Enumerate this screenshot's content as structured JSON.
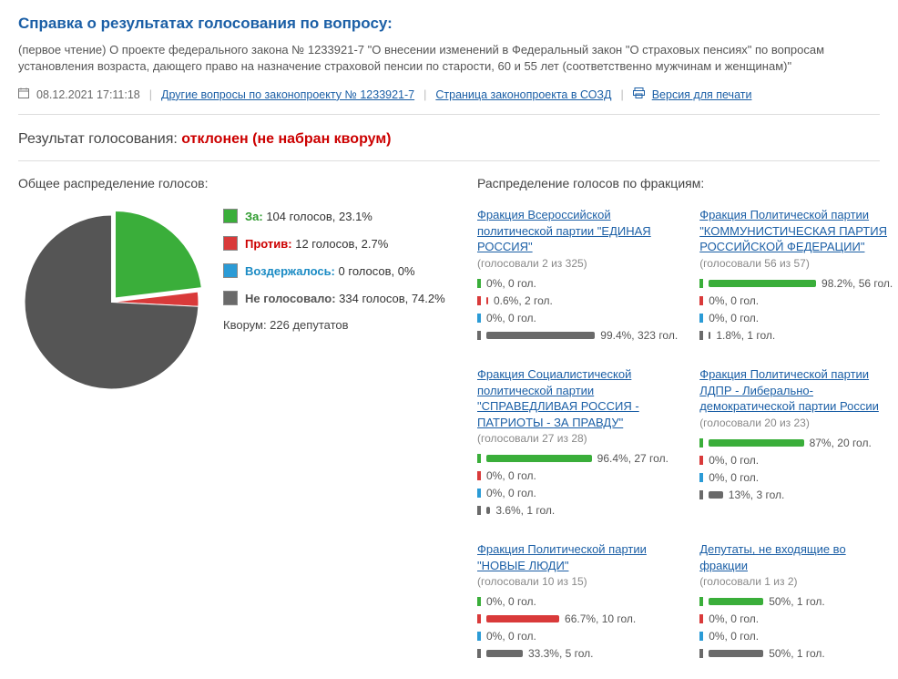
{
  "header": {
    "title": "Справка о результатах голосования по вопросу:",
    "subtitle": "(первое чтение) О проекте федерального закона № 1233921-7 \"О внесении изменений в Федеральный закон \"О страховых пенсиях\" по вопросам установления возраста, дающего право на назначение страховой пенсии по старости, 60 и 55 лет (соответственно мужчинам и женщинам)\""
  },
  "meta": {
    "datetime": "08.12.2021 17:11:18",
    "link_other": "Другие вопросы по законопроекту № 1233921-7",
    "link_sozd": "Страница законопроекта в СОЗД",
    "link_print": "Версия для печати"
  },
  "result": {
    "label": "Результат голосования:",
    "value": "отклонен (не набран кворум)"
  },
  "overall": {
    "heading": "Общее распределение голосов:",
    "pie": {
      "size": 200,
      "slices": [
        {
          "key": "for",
          "pct": 23.1,
          "color": "#3aae3a"
        },
        {
          "key": "against",
          "pct": 2.7,
          "color": "#d93a3a"
        },
        {
          "key": "abstain",
          "pct": 0.0,
          "color": "#2b9bd6"
        },
        {
          "key": "novote",
          "pct": 74.2,
          "color": "#555555"
        }
      ]
    },
    "legend": {
      "for": {
        "label": "За:",
        "text": "104 голосов, 23.1%",
        "color": "#3aae3a"
      },
      "against": {
        "label": "Против:",
        "text": "12 голосов, 2.7%",
        "color": "#d93a3a"
      },
      "abstain": {
        "label": "Воздержалось:",
        "text": "0 голосов, 0%",
        "color": "#2b9bd6"
      },
      "novote": {
        "label": "Не голосовало:",
        "text": "334 голосов, 74.2%",
        "color": "#6a6a6a"
      }
    },
    "quorum": "Кворум: 226 депутатов"
  },
  "factions": {
    "heading": "Распределение голосов по фракциям:",
    "bar_max_width": 120,
    "items": [
      {
        "name": "Фракция Всероссийской политической партии \"ЕДИНАЯ РОССИЯ\"",
        "is_link": true,
        "voted": "(голосовали 2 из 325)",
        "rows": [
          {
            "kind": "for",
            "pct": 0,
            "text": "0%, 0 гол."
          },
          {
            "kind": "against",
            "pct": 0.6,
            "text": "0.6%, 2 гол."
          },
          {
            "kind": "abstain",
            "pct": 0,
            "text": "0%, 0 гол."
          },
          {
            "kind": "novote",
            "pct": 99.4,
            "text": "99.4%, 323 гол."
          }
        ]
      },
      {
        "name": "Фракция Политической партии \"КОММУНИСТИЧЕСКАЯ ПАРТИЯ РОССИЙСКОЙ ФЕДЕРАЦИИ\"",
        "is_link": true,
        "voted": "(голосовали 56 из 57)",
        "rows": [
          {
            "kind": "for",
            "pct": 98.2,
            "text": "98.2%, 56 гол."
          },
          {
            "kind": "against",
            "pct": 0,
            "text": "0%, 0 гол."
          },
          {
            "kind": "abstain",
            "pct": 0,
            "text": "0%, 0 гол."
          },
          {
            "kind": "novote",
            "pct": 1.8,
            "text": "1.8%, 1 гол."
          }
        ]
      },
      {
        "name": "Фракция Социалистической политической партии \"СПРАВЕДЛИВАЯ РОССИЯ - ПАТРИОТЫ - ЗА ПРАВДУ\"",
        "is_link": true,
        "voted": "(голосовали 27 из 28)",
        "rows": [
          {
            "kind": "for",
            "pct": 96.4,
            "text": "96.4%, 27 гол."
          },
          {
            "kind": "against",
            "pct": 0,
            "text": "0%, 0 гол."
          },
          {
            "kind": "abstain",
            "pct": 0,
            "text": "0%, 0 гол."
          },
          {
            "kind": "novote",
            "pct": 3.6,
            "text": "3.6%, 1 гол."
          }
        ]
      },
      {
        "name": "Фракция Политической партии ЛДПР - Либерально-демократической партии России",
        "is_link": true,
        "voted": "(голосовали 20 из 23)",
        "rows": [
          {
            "kind": "for",
            "pct": 87,
            "text": "87%, 20 гол."
          },
          {
            "kind": "against",
            "pct": 0,
            "text": "0%, 0 гол."
          },
          {
            "kind": "abstain",
            "pct": 0,
            "text": "0%, 0 гол."
          },
          {
            "kind": "novote",
            "pct": 13,
            "text": "13%, 3 гол."
          }
        ]
      },
      {
        "name": "Фракция Политической партии \"НОВЫЕ ЛЮДИ\"",
        "is_link": true,
        "voted": "(голосовали 10 из 15)",
        "rows": [
          {
            "kind": "for",
            "pct": 0,
            "text": "0%, 0 гол."
          },
          {
            "kind": "against",
            "pct": 66.7,
            "text": "66.7%, 10 гол."
          },
          {
            "kind": "abstain",
            "pct": 0,
            "text": "0%, 0 гол."
          },
          {
            "kind": "novote",
            "pct": 33.3,
            "text": "33.3%, 5 гол."
          }
        ]
      },
      {
        "name": "Депутаты, не входящие во фракции",
        "is_link": true,
        "voted": "(голосовали 1 из 2)",
        "rows": [
          {
            "kind": "for",
            "pct": 50,
            "text": "50%, 1 гол."
          },
          {
            "kind": "against",
            "pct": 0,
            "text": "0%, 0 гол."
          },
          {
            "kind": "abstain",
            "pct": 0,
            "text": "0%, 0 гол."
          },
          {
            "kind": "novote",
            "pct": 50,
            "text": "50%, 1 гол."
          }
        ]
      }
    ]
  },
  "colors": {
    "for": "#3aae3a",
    "against": "#d93a3a",
    "abstain": "#2b9bd6",
    "novote": "#6a6a6a"
  }
}
